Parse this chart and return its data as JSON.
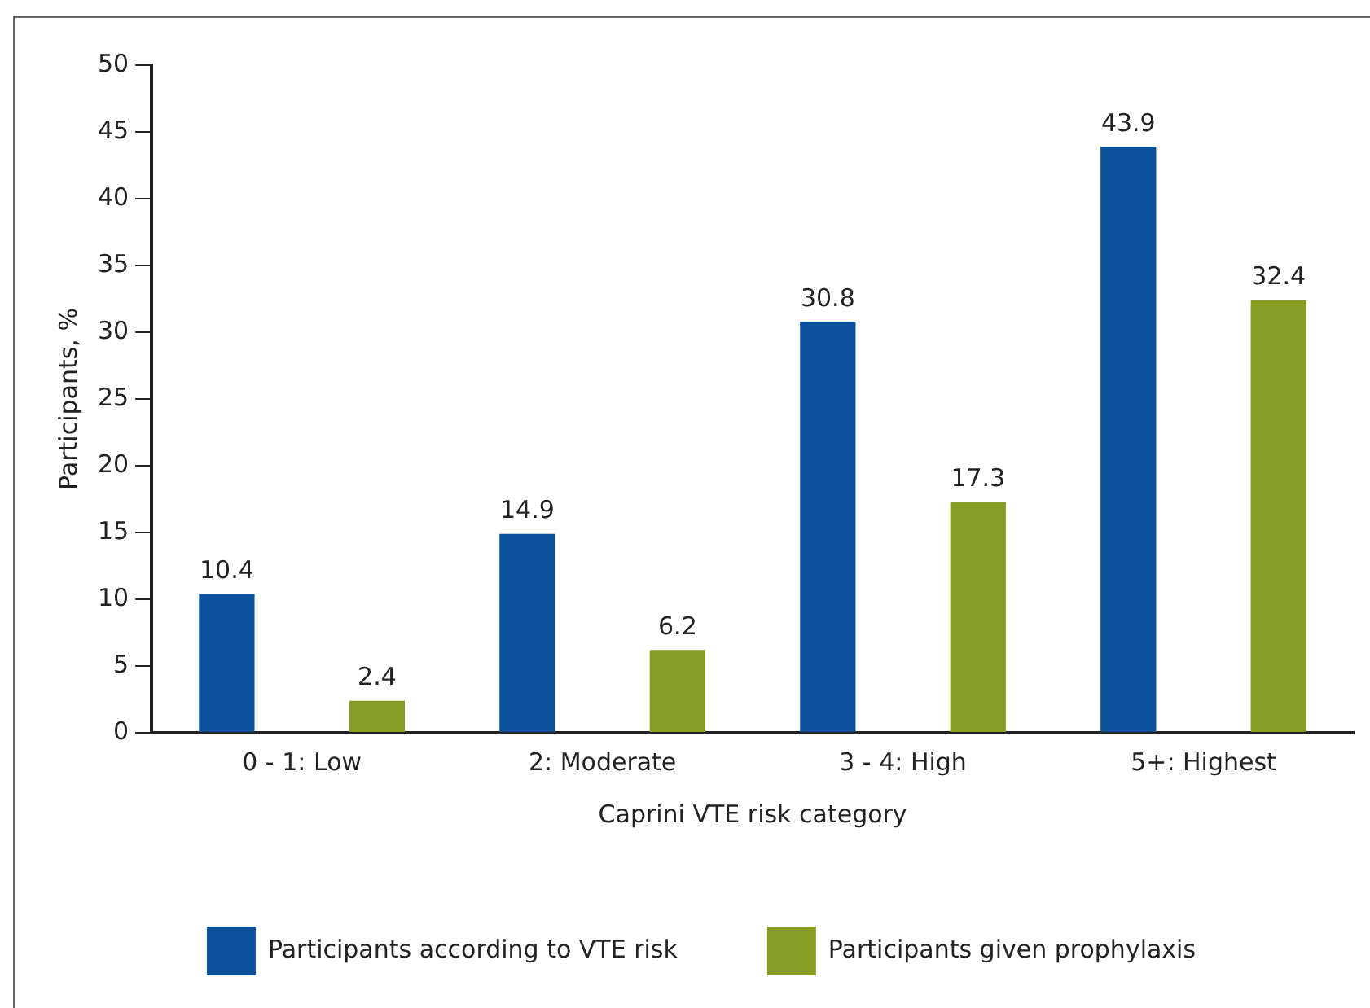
{
  "chart_data": {
    "type": "bar",
    "xlabel": "Caprini VTE risk category",
    "ylabel": "Participants, %",
    "categories": [
      "0 - 1: Low",
      "2: Moderate",
      "3 - 4: High",
      "5+: Highest"
    ],
    "series": [
      {
        "name": "Participants according to VTE risk",
        "color": "#0b519b",
        "values": [
          10.4,
          14.9,
          30.8,
          43.9
        ]
      },
      {
        "name": "Participants given prophylaxis",
        "color": "#869c22",
        "values": [
          2.4,
          6.2,
          17.3,
          32.4
        ]
      }
    ],
    "ylim": [
      0,
      50
    ],
    "yticks": [
      0,
      5,
      10,
      15,
      20,
      25,
      30,
      35,
      40,
      45,
      50
    ],
    "grid": false,
    "legend": "bottom",
    "data_labels": true
  }
}
